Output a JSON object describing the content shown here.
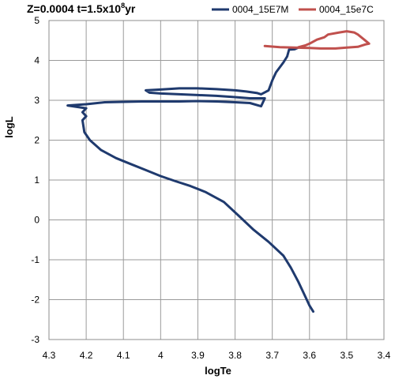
{
  "chart_data": {
    "type": "line",
    "title": {
      "prefix": "Z=0.0004 t=1.5x10",
      "superscript": "8",
      "suffix": "yr"
    },
    "xlabel": "logTe",
    "ylabel": "logL",
    "xlim": [
      4.3,
      3.4
    ],
    "ylim": [
      -3,
      5
    ],
    "x_reversed": true,
    "xticks": [
      4.3,
      4.2,
      4.1,
      4.0,
      3.9,
      3.8,
      3.7,
      3.6,
      3.5,
      3.4
    ],
    "xtick_labels": [
      "4.3",
      "4.2",
      "4.1",
      "4",
      "3.9",
      "3.8",
      "3.7",
      "3.6",
      "3.5",
      "3.4"
    ],
    "yticks": [
      -3,
      -2,
      -1,
      0,
      1,
      2,
      3,
      4,
      5
    ],
    "ytick_labels": [
      "-3",
      "-2",
      "-1",
      "0",
      "1",
      "2",
      "3",
      "4",
      "5"
    ],
    "grid": true,
    "legend_position": "top-right",
    "series": [
      {
        "name": "0004_15E7M",
        "color": "#1f3a6e",
        "points": [
          [
            3.59,
            -2.3
          ],
          [
            3.6,
            -2.15
          ],
          [
            3.61,
            -1.95
          ],
          [
            3.63,
            -1.55
          ],
          [
            3.65,
            -1.2
          ],
          [
            3.67,
            -0.9
          ],
          [
            3.71,
            -0.55
          ],
          [
            3.75,
            -0.25
          ],
          [
            3.79,
            0.1
          ],
          [
            3.83,
            0.45
          ],
          [
            3.86,
            0.6
          ],
          [
            3.88,
            0.7
          ],
          [
            3.92,
            0.85
          ],
          [
            3.96,
            0.97
          ],
          [
            4.0,
            1.1
          ],
          [
            4.04,
            1.25
          ],
          [
            4.08,
            1.4
          ],
          [
            4.12,
            1.55
          ],
          [
            4.16,
            1.75
          ],
          [
            4.19,
            2.0
          ],
          [
            4.205,
            2.2
          ],
          [
            4.21,
            2.5
          ],
          [
            4.2,
            2.6
          ],
          [
            4.21,
            2.7
          ],
          [
            4.2,
            2.8
          ],
          [
            4.25,
            2.87
          ],
          [
            4.2,
            2.9
          ],
          [
            4.15,
            2.95
          ],
          [
            4.1,
            2.96
          ],
          [
            4.05,
            2.97
          ],
          [
            4.0,
            2.97
          ],
          [
            3.95,
            2.97
          ],
          [
            3.9,
            2.98
          ],
          [
            3.85,
            2.97
          ],
          [
            3.8,
            2.95
          ],
          [
            3.76,
            2.93
          ],
          [
            3.73,
            2.85
          ],
          [
            3.72,
            3.05
          ],
          [
            3.76,
            3.05
          ],
          [
            3.8,
            3.08
          ],
          [
            3.85,
            3.11
          ],
          [
            3.9,
            3.13
          ],
          [
            3.95,
            3.15
          ],
          [
            4.0,
            3.17
          ],
          [
            4.03,
            3.19
          ],
          [
            4.04,
            3.25
          ],
          [
            4.0,
            3.27
          ],
          [
            3.95,
            3.3
          ],
          [
            3.9,
            3.3
          ],
          [
            3.85,
            3.28
          ],
          [
            3.8,
            3.25
          ],
          [
            3.77,
            3.22
          ],
          [
            3.74,
            3.18
          ],
          [
            3.73,
            3.15
          ],
          [
            3.71,
            3.25
          ],
          [
            3.7,
            3.5
          ],
          [
            3.69,
            3.7
          ],
          [
            3.67,
            3.95
          ],
          [
            3.66,
            4.1
          ],
          [
            3.655,
            4.27
          ],
          [
            3.64,
            4.28
          ],
          [
            3.63,
            4.32
          ]
        ]
      },
      {
        "name": "0004_15e7C",
        "color": "#c0504d",
        "points": [
          [
            3.72,
            4.36
          ],
          [
            3.68,
            4.33
          ],
          [
            3.64,
            4.32
          ],
          [
            3.6,
            4.31
          ],
          [
            3.57,
            4.3
          ],
          [
            3.53,
            4.3
          ],
          [
            3.5,
            4.32
          ],
          [
            3.47,
            4.34
          ],
          [
            3.45,
            4.4
          ],
          [
            3.44,
            4.42
          ],
          [
            3.45,
            4.5
          ],
          [
            3.47,
            4.65
          ],
          [
            3.48,
            4.7
          ],
          [
            3.5,
            4.73
          ],
          [
            3.52,
            4.7
          ],
          [
            3.55,
            4.65
          ],
          [
            3.56,
            4.58
          ],
          [
            3.58,
            4.52
          ],
          [
            3.6,
            4.42
          ],
          [
            3.61,
            4.38
          ],
          [
            3.63,
            4.33
          ]
        ]
      }
    ]
  }
}
